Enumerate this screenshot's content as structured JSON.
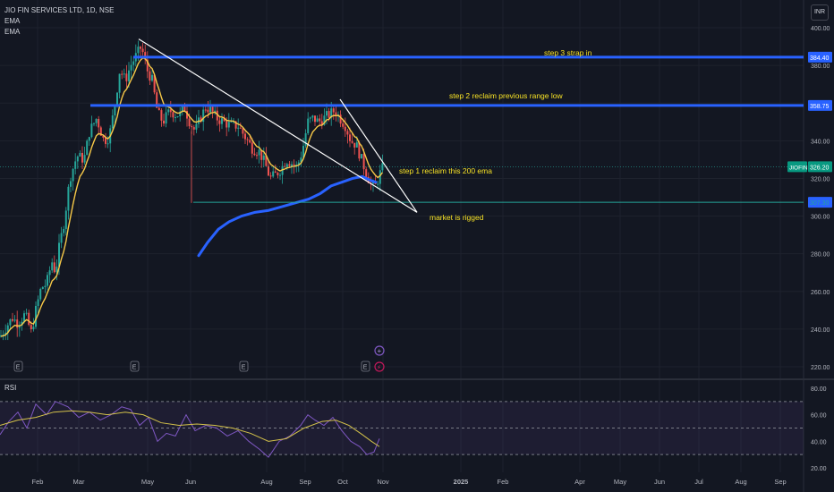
{
  "header": {
    "symbol_line": "JIO FIN SERVICES LTD, 1D, NSE",
    "indicator_1": "EMA",
    "indicator_2": "EMA",
    "currency": "INR"
  },
  "price_axis": {
    "ticks": [
      "400.00",
      "380.00",
      "360.00",
      "340.00",
      "320.00",
      "300.00",
      "280.00",
      "260.00",
      "240.00",
      "220.00"
    ],
    "ylim": [
      220,
      400
    ]
  },
  "rsi_axis": {
    "label": "RSI",
    "ticks": [
      "80.00",
      "60.00",
      "40.00",
      "20.00"
    ],
    "ylim": [
      20,
      80
    ]
  },
  "time_axis": {
    "ticks": [
      "Feb",
      "Mar",
      "May",
      "Jun",
      "Aug",
      "Sep",
      "Oct",
      "Nov",
      "2025",
      "Feb",
      "Apr",
      "May",
      "Jun",
      "Jul",
      "Aug",
      "Sep"
    ]
  },
  "price_tags": {
    "level_3": "384.40",
    "level_2": "358.75",
    "last": "326.20",
    "symbol": "JIOFIN",
    "level_1": "307.30"
  },
  "annotations": {
    "step3": "step 3 strap in",
    "step2": "step 2 reclaim previous range low",
    "step1": "step 1 reclaim this 200 ema",
    "rigged": "market is rigged"
  },
  "earnings_markers": [
    "E",
    "E",
    "E",
    "E"
  ],
  "colors": {
    "background": "#131722",
    "up": "#26a69a",
    "down": "#ef5350",
    "level_line": "#2962ff",
    "ema200": "#2962ff",
    "ema_fast": "#f7c948",
    "rsi": "#7e57c2",
    "rsi_ma": "#d4c24a",
    "annotation_text": "#f7e225"
  },
  "chart_data": {
    "type": "candlestick",
    "symbol": "JIOFIN",
    "interval": "1D",
    "horizontal_levels": [
      384.4,
      358.75,
      307.3
    ],
    "last_price": 326.2,
    "price_path": [
      [
        0,
        236
      ],
      [
        8,
        242
      ],
      [
        14,
        246
      ],
      [
        20,
        243
      ],
      [
        28,
        248
      ],
      [
        35,
        238
      ],
      [
        40,
        250
      ],
      [
        46,
        262
      ],
      [
        52,
        264
      ],
      [
        58,
        276
      ],
      [
        62,
        270
      ],
      [
        66,
        283
      ],
      [
        72,
        298
      ],
      [
        78,
        320
      ],
      [
        86,
        332
      ],
      [
        94,
        330
      ],
      [
        100,
        345
      ],
      [
        108,
        352
      ],
      [
        116,
        340
      ],
      [
        122,
        342
      ],
      [
        128,
        358
      ],
      [
        134,
        378
      ],
      [
        140,
        372
      ],
      [
        146,
        380
      ],
      [
        152,
        385
      ],
      [
        158,
        390
      ],
      [
        164,
        378
      ],
      [
        170,
        372
      ],
      [
        176,
        355
      ],
      [
        182,
        350
      ],
      [
        190,
        356
      ],
      [
        196,
        354
      ],
      [
        202,
        354
      ],
      [
        206,
        358
      ],
      [
        212,
        350
      ],
      [
        218,
        345
      ],
      [
        224,
        352
      ],
      [
        230,
        358
      ],
      [
        236,
        356
      ],
      [
        242,
        352
      ],
      [
        250,
        350
      ],
      [
        258,
        348
      ],
      [
        266,
        348
      ],
      [
        274,
        342
      ],
      [
        282,
        336
      ],
      [
        290,
        334
      ],
      [
        296,
        328
      ],
      [
        302,
        320
      ],
      [
        308,
        322
      ],
      [
        314,
        325
      ],
      [
        320,
        330
      ],
      [
        326,
        328
      ],
      [
        332,
        326
      ],
      [
        338,
        335
      ],
      [
        344,
        350
      ],
      [
        350,
        352
      ],
      [
        356,
        350
      ],
      [
        362,
        352
      ],
      [
        368,
        354
      ],
      [
        374,
        356
      ],
      [
        380,
        352
      ],
      [
        386,
        348
      ],
      [
        392,
        340
      ],
      [
        398,
        338
      ],
      [
        404,
        330
      ],
      [
        410,
        322
      ],
      [
        416,
        315
      ],
      [
        420,
        316
      ],
      [
        424,
        322
      ],
      [
        428,
        326
      ]
    ],
    "ema200_path": [
      [
        222,
        279
      ],
      [
        232,
        286
      ],
      [
        244,
        293
      ],
      [
        256,
        297
      ],
      [
        270,
        300
      ],
      [
        285,
        302
      ],
      [
        300,
        303
      ],
      [
        315,
        305
      ],
      [
        330,
        307
      ],
      [
        345,
        309
      ],
      [
        358,
        312
      ],
      [
        370,
        316
      ],
      [
        382,
        318
      ],
      [
        394,
        320
      ],
      [
        405,
        321
      ],
      [
        414,
        319
      ],
      [
        420,
        318
      ]
    ],
    "rsi_path": [
      [
        0,
        45
      ],
      [
        10,
        55
      ],
      [
        20,
        62
      ],
      [
        30,
        50
      ],
      [
        40,
        68
      ],
      [
        52,
        60
      ],
      [
        62,
        70
      ],
      [
        76,
        66
      ],
      [
        88,
        58
      ],
      [
        100,
        62
      ],
      [
        112,
        56
      ],
      [
        124,
        60
      ],
      [
        136,
        66
      ],
      [
        146,
        64
      ],
      [
        156,
        52
      ],
      [
        166,
        58
      ],
      [
        176,
        40
      ],
      [
        186,
        46
      ],
      [
        196,
        44
      ],
      [
        208,
        60
      ],
      [
        218,
        48
      ],
      [
        230,
        52
      ],
      [
        242,
        50
      ],
      [
        254,
        44
      ],
      [
        266,
        48
      ],
      [
        278,
        40
      ],
      [
        290,
        34
      ],
      [
        300,
        28
      ],
      [
        312,
        40
      ],
      [
        324,
        44
      ],
      [
        336,
        52
      ],
      [
        344,
        60
      ],
      [
        352,
        56
      ],
      [
        362,
        52
      ],
      [
        372,
        58
      ],
      [
        382,
        48
      ],
      [
        392,
        40
      ],
      [
        402,
        36
      ],
      [
        410,
        30
      ],
      [
        418,
        32
      ],
      [
        424,
        42
      ]
    ],
    "rsi_ma_path": [
      [
        0,
        52
      ],
      [
        20,
        56
      ],
      [
        40,
        58
      ],
      [
        60,
        62
      ],
      [
        80,
        63
      ],
      [
        100,
        62
      ],
      [
        120,
        60
      ],
      [
        140,
        62
      ],
      [
        160,
        60
      ],
      [
        180,
        54
      ],
      [
        200,
        52
      ],
      [
        220,
        53
      ],
      [
        240,
        52
      ],
      [
        260,
        50
      ],
      [
        280,
        46
      ],
      [
        300,
        40
      ],
      [
        320,
        42
      ],
      [
        340,
        50
      ],
      [
        360,
        55
      ],
      [
        375,
        56
      ],
      [
        390,
        52
      ],
      [
        405,
        45
      ],
      [
        415,
        40
      ],
      [
        424,
        36
      ]
    ],
    "rsi_levels": [
      70,
      50,
      30
    ]
  }
}
